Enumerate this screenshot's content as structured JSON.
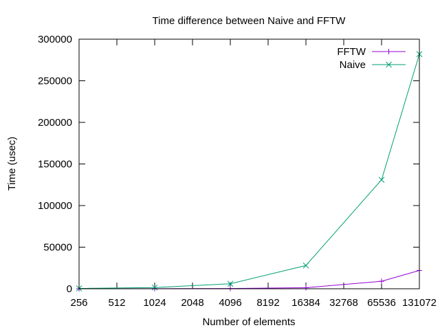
{
  "chart_data": {
    "type": "line",
    "title": "Time difference between Naive and FFTW",
    "xlabel": "Number of elements",
    "ylabel": "Time (usec)",
    "x_scale": "log2",
    "xlim": [
      256,
      131072
    ],
    "ylim": [
      0,
      300000
    ],
    "x_ticks": [
      256,
      512,
      1024,
      2048,
      4096,
      8192,
      16384,
      32768,
      65536,
      131072
    ],
    "x_tick_labels": [
      "256",
      "512",
      "1024",
      "2048",
      "4096",
      "8192",
      "16384",
      "32768",
      "65536",
      "131072"
    ],
    "y_ticks": [
      0,
      50000,
      100000,
      150000,
      200000,
      250000,
      300000
    ],
    "y_tick_labels": [
      "0",
      "50000",
      "100000",
      "150000",
      "200000",
      "250000",
      "300000"
    ],
    "legend_position": "top-right",
    "series": [
      {
        "name": "FFTW",
        "color": "#9400d3",
        "marker": "plus",
        "x": [
          256,
          1024,
          4096,
          16384,
          65536,
          131072
        ],
        "y": [
          50,
          150,
          350,
          1200,
          9000,
          22000
        ]
      },
      {
        "name": "Naive",
        "color": "#009e73",
        "marker": "x",
        "x": [
          256,
          1024,
          4096,
          16384,
          65536,
          131072
        ],
        "y": [
          400,
          1500,
          6000,
          28000,
          131000,
          282000
        ]
      }
    ]
  }
}
